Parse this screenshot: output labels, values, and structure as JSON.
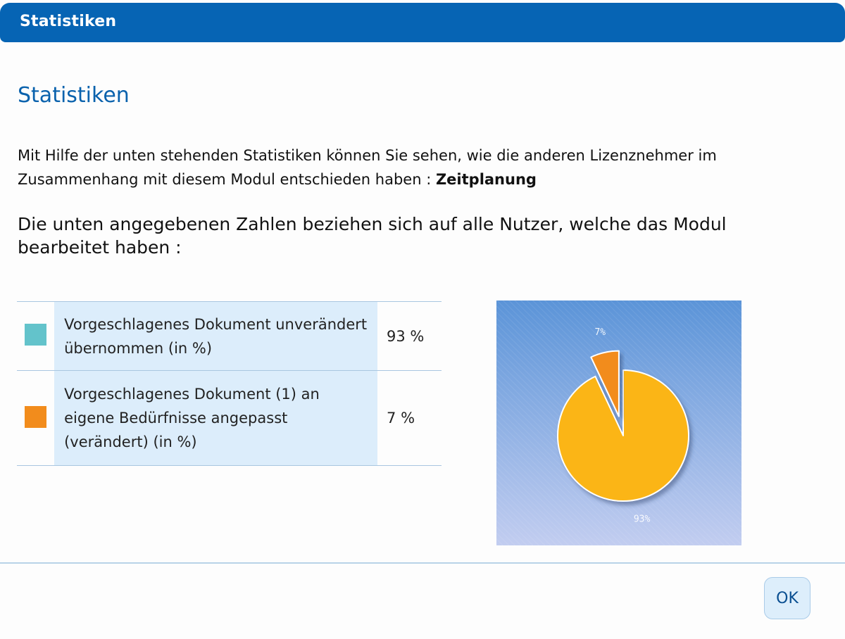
{
  "dialog": {
    "title": "Statistiken",
    "heading": "Statistiken",
    "intro_text": "Mit Hilfe der unten stehenden Statistiken können Sie sehen, wie die anderen Lizenznehmer im Zusammenhang mit diesem Modul entschieden haben : ",
    "module_name": "Zeitplanung",
    "subheading": "Die unten angegebenen Zahlen beziehen sich auf alle Nutzer, welche das Modul bearbeitet haben :",
    "ok_label": "OK"
  },
  "stats": [
    {
      "label": "Vorgeschlagenes Dokument unverändert übernommen (in %)",
      "value_text": "93 %",
      "swatch_color": "#63c3cb"
    },
    {
      "label": "Vorgeschlagenes Dokument (1) an eigene Bedürfnisse angepasst (verändert) (in %)",
      "value_text": "7 %",
      "swatch_color": "#f28c1c"
    }
  ],
  "chart_data": {
    "type": "pie",
    "categories": [
      "93%",
      "7%"
    ],
    "values": [
      93,
      7
    ],
    "slice_labels": [
      "93%",
      "7%"
    ],
    "colors": [
      "#fbb519",
      "#f28c1c"
    ],
    "exploded": [
      false,
      true
    ],
    "background_colors": [
      "#5b94d8",
      "#c2cdf0"
    ]
  }
}
